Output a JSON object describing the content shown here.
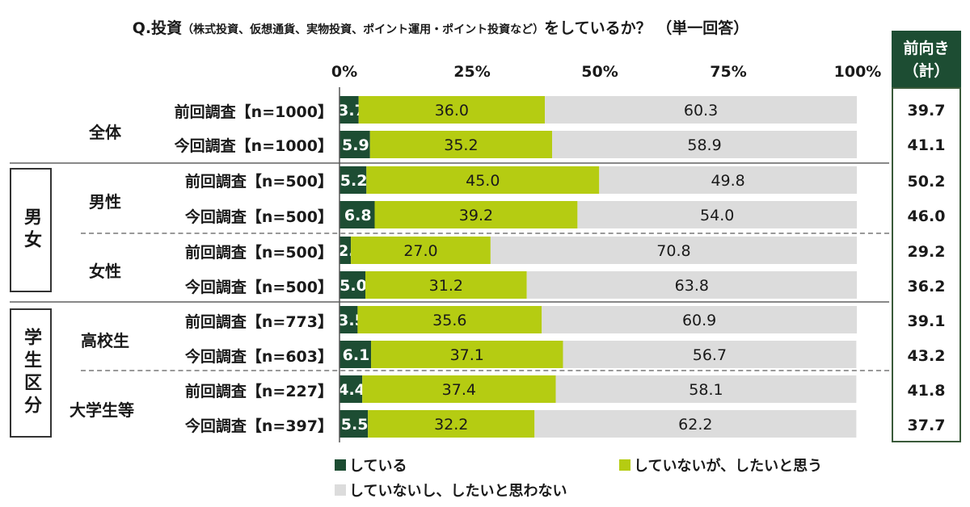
{
  "title": {
    "main_prefix": "Q.投資",
    "paren": "（株式投資、仮想通貨、実物投資、ポイント運用・ポイント投資など）",
    "main_suffix": "をしているか？ （単一回答）"
  },
  "axis_ticks": [
    "0%",
    "25%",
    "50%",
    "75%",
    "100%"
  ],
  "right_header": [
    "前向き",
    "（計）"
  ],
  "groups": {
    "overall": "全体",
    "male": "男性",
    "female": "女性",
    "highschool": "高校生",
    "university": "大学生等"
  },
  "categories": {
    "gender": "男女",
    "student": "学生区分"
  },
  "colors": {
    "doing": "#1d4d33",
    "want": "#b5cc12",
    "no": "#dcdcdc",
    "header_bg": "#1d4d33"
  },
  "chart_data": {
    "type": "bar",
    "orientation": "horizontal",
    "stacked": true,
    "xlim": [
      0,
      100
    ],
    "categories": [
      "前回調査【n=1000】",
      "今回調査【n=1000】",
      "前回調査【n=500】",
      "今回調査【n=500】",
      "前回調査【n=500】",
      "今回調査【n=500】",
      "前回調査【n=773】",
      "今回調査【n=603】",
      "前回調査【n=227】",
      "今回調査【n=397】"
    ],
    "series": [
      {
        "name": "している",
        "values": [
          3.7,
          5.9,
          5.2,
          6.8,
          2.2,
          5.0,
          3.5,
          6.1,
          4.4,
          5.5
        ]
      },
      {
        "name": "していないが、したいと思う",
        "values": [
          36.0,
          35.2,
          45.0,
          39.2,
          27.0,
          31.2,
          35.6,
          37.1,
          37.4,
          32.2
        ]
      },
      {
        "name": "していないし、したいと思わない",
        "values": [
          60.3,
          58.9,
          49.8,
          54.0,
          70.8,
          63.8,
          60.9,
          56.7,
          58.1,
          62.2
        ]
      }
    ],
    "positive_total": [
      "39.7",
      "41.1",
      "50.2",
      "46.0",
      "29.2",
      "36.2",
      "39.1",
      "43.2",
      "41.8",
      "37.7"
    ],
    "legend": [
      "している",
      "していないが、したいと思う",
      "していないし、したいと思わない"
    ]
  }
}
